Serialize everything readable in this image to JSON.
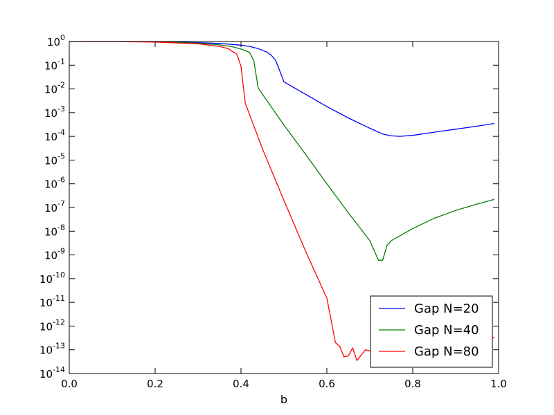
{
  "chart_data": {
    "type": "line",
    "title": "",
    "xlabel": "b",
    "ylabel": "",
    "xlim": [
      0.0,
      1.0
    ],
    "ylim_exponents": [
      -14,
      0
    ],
    "y_scale": "log",
    "grid": false,
    "legend_position": "lower-right",
    "x_ticks": [
      "0.0",
      "0.2",
      "0.4",
      "0.6",
      "0.8",
      "1.0"
    ],
    "y_ticks": [
      {
        "base": "10",
        "exp": "0"
      },
      {
        "base": "10",
        "exp": "-1"
      },
      {
        "base": "10",
        "exp": "-2"
      },
      {
        "base": "10",
        "exp": "-3"
      },
      {
        "base": "10",
        "exp": "-4"
      },
      {
        "base": "10",
        "exp": "-5"
      },
      {
        "base": "10",
        "exp": "-6"
      },
      {
        "base": "10",
        "exp": "-7"
      },
      {
        "base": "10",
        "exp": "-8"
      },
      {
        "base": "10",
        "exp": "-9"
      },
      {
        "base": "10",
        "exp": "-10"
      },
      {
        "base": "10",
        "exp": "-11"
      },
      {
        "base": "10",
        "exp": "-12"
      },
      {
        "base": "10",
        "exp": "-13"
      },
      {
        "base": "10",
        "exp": "-14"
      }
    ],
    "series": [
      {
        "name": "Gap N=20",
        "color": "#0000ff",
        "x": [
          0.0,
          0.1,
          0.2,
          0.25,
          0.3,
          0.35,
          0.4,
          0.42,
          0.44,
          0.46,
          0.47,
          0.48,
          0.49,
          0.5,
          0.55,
          0.6,
          0.65,
          0.7,
          0.73,
          0.75,
          0.77,
          0.8,
          0.85,
          0.9,
          0.95,
          0.99
        ],
        "y": [
          1.0,
          1.0,
          0.98,
          0.95,
          0.9,
          0.83,
          0.7,
          0.62,
          0.5,
          0.36,
          0.27,
          0.17,
          0.06,
          0.02,
          0.006,
          0.0018,
          0.0006,
          0.00022,
          0.000125,
          0.000105,
          0.0001,
          0.00011,
          0.00015,
          0.0002,
          0.00027,
          0.00035
        ]
      },
      {
        "name": "Gap N=40",
        "color": "#008000",
        "x": [
          0.0,
          0.1,
          0.2,
          0.3,
          0.35,
          0.38,
          0.4,
          0.42,
          0.43,
          0.44,
          0.5,
          0.55,
          0.6,
          0.65,
          0.7,
          0.72,
          0.73,
          0.74,
          0.75,
          0.8,
          0.85,
          0.9,
          0.95,
          0.99
        ],
        "y": [
          1.0,
          1.0,
          0.97,
          0.85,
          0.72,
          0.6,
          0.48,
          0.35,
          0.15,
          0.011,
          0.0003,
          1.8e-05,
          1e-06,
          6e-08,
          4e-09,
          6e-10,
          6e-10,
          2.5e-09,
          4e-09,
          1.3e-08,
          3.5e-08,
          7.5e-08,
          1.4e-07,
          2.2e-07
        ]
      },
      {
        "name": "Gap N=80",
        "color": "#ff0000",
        "x": [
          0.0,
          0.1,
          0.2,
          0.3,
          0.35,
          0.37,
          0.38,
          0.39,
          0.4,
          0.41,
          0.45,
          0.5,
          0.55,
          0.6,
          0.62,
          0.63,
          0.64,
          0.65,
          0.66,
          0.67,
          0.68,
          0.69,
          0.7,
          0.75,
          0.8,
          0.85,
          0.9,
          0.95,
          0.99
        ],
        "y": [
          1.0,
          0.99,
          0.95,
          0.8,
          0.62,
          0.5,
          0.38,
          0.3,
          0.09,
          0.0025,
          3e-05,
          2e-07,
          1.5e-09,
          1.5e-11,
          2e-13,
          1.4e-13,
          5e-14,
          5.5e-14,
          1.2e-13,
          3.5e-14,
          6e-14,
          1e-13,
          9e-14,
          8e-14,
          1e-13,
          1e-13,
          1e-13,
          1e-13,
          3.5e-13
        ]
      }
    ]
  }
}
